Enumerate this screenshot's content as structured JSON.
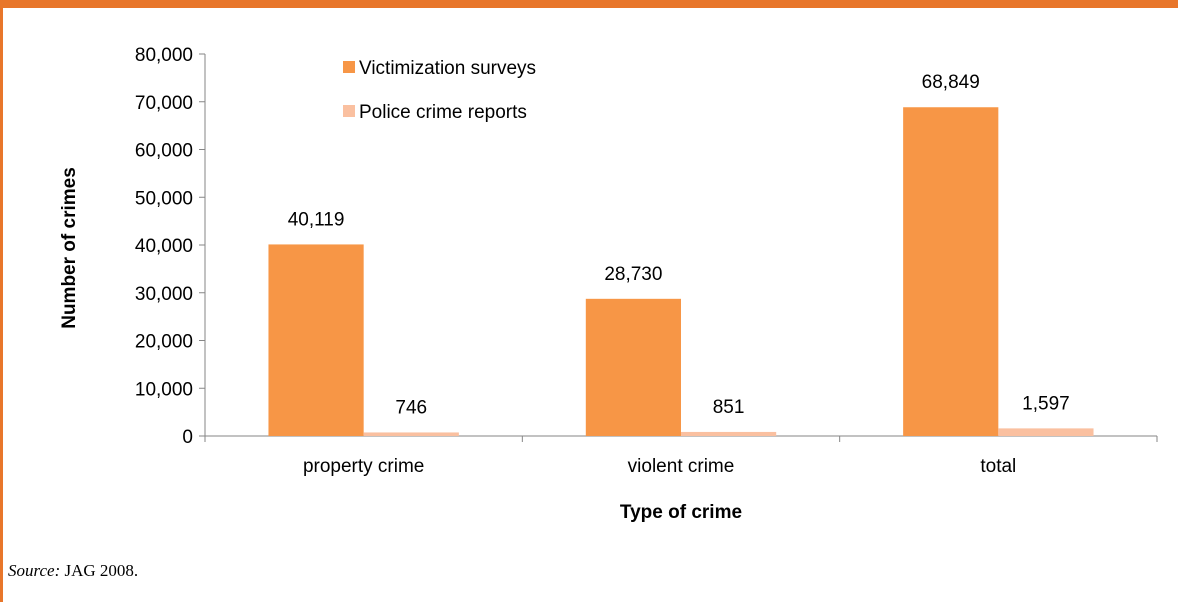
{
  "colors": {
    "frame": "#E8762A",
    "axis": "#868686",
    "series_1": "#F79646",
    "series_2": "#FAC0A0"
  },
  "chart_data": {
    "type": "bar",
    "title": "",
    "xlabel": "Type of crime",
    "ylabel": "Number of crimes",
    "ylim": [
      0,
      80000
    ],
    "y_ticks": [
      0,
      10000,
      20000,
      30000,
      40000,
      50000,
      60000,
      70000,
      80000
    ],
    "y_tick_labels": [
      "0",
      "10,000",
      "20,000",
      "30,000",
      "40,000",
      "50,000",
      "60,000",
      "70,000",
      "80,000"
    ],
    "categories": [
      "property crime",
      "violent crime",
      "total"
    ],
    "series": [
      {
        "name": "Victimization surveys",
        "values": [
          40119,
          28730,
          68849
        ],
        "labels": [
          "40,119",
          "28,730",
          "68,849"
        ],
        "color": "#F79646"
      },
      {
        "name": "Police crime reports",
        "values": [
          746,
          851,
          1597
        ],
        "labels": [
          "746",
          "851",
          "1,597"
        ],
        "color": "#FAC0A0"
      }
    ],
    "legend_position": "top-left",
    "grid": false
  },
  "source": {
    "label": "Source:",
    "text": "JAG 2008."
  }
}
